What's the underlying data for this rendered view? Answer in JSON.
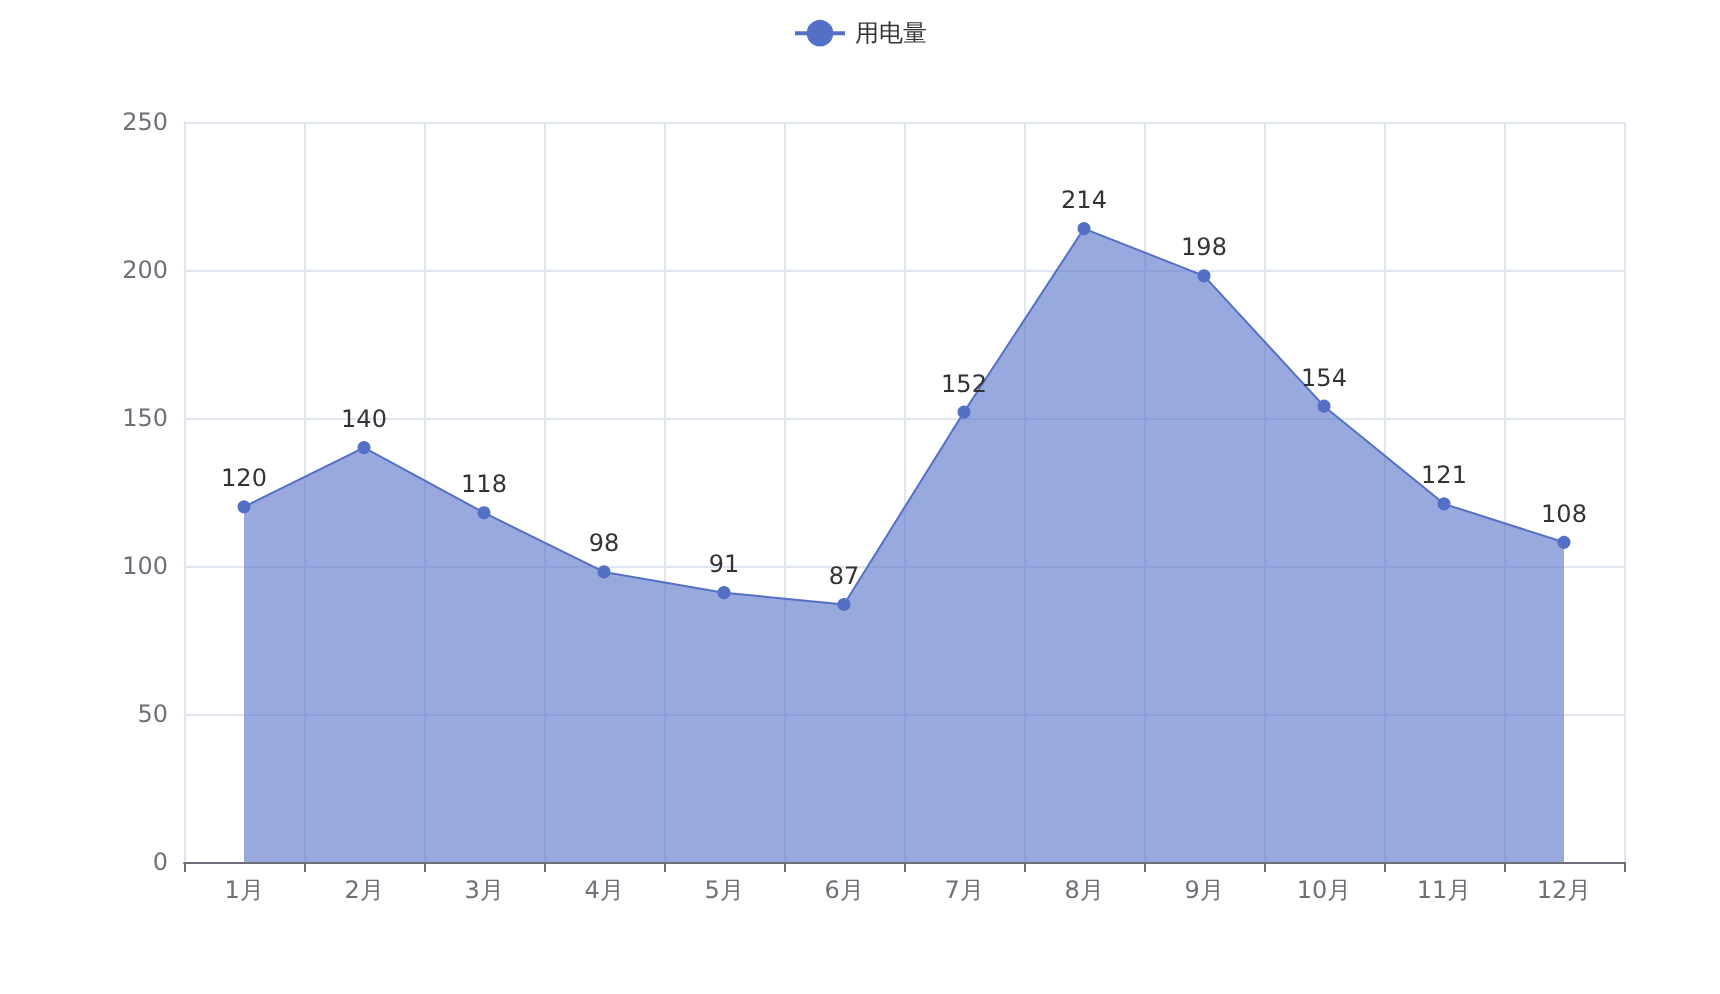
{
  "chart_data": {
    "type": "area",
    "categories": [
      "1月",
      "2月",
      "3月",
      "4月",
      "5月",
      "6月",
      "7月",
      "8月",
      "9月",
      "10月",
      "11月",
      "12月"
    ],
    "series": [
      {
        "name": "用电量",
        "color": "#5470c6",
        "values": [
          120,
          140,
          118,
          98,
          91,
          87,
          152,
          214,
          198,
          154,
          121,
          108
        ]
      }
    ],
    "ylim": [
      0,
      250
    ],
    "yticks": [
      0,
      50,
      100,
      150,
      200,
      250
    ],
    "grid": true,
    "legend": "top",
    "marker": "circle",
    "data_labels": true
  }
}
